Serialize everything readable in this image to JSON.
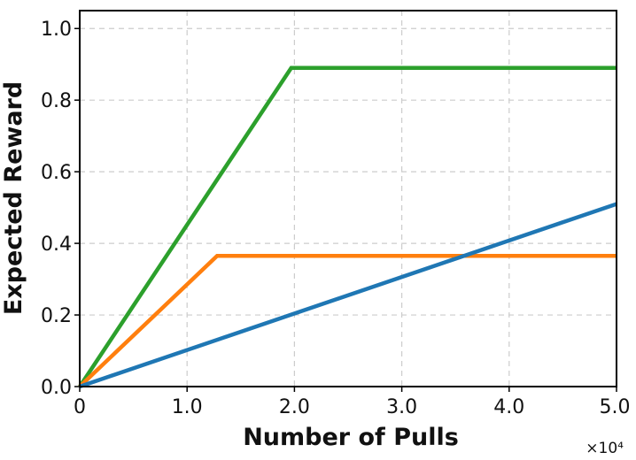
{
  "chart_data": {
    "type": "line",
    "title": "",
    "xlabel": "Number of Pulls",
    "ylabel": "Expected Reward",
    "x_offset_label": "×10⁴",
    "xlim": [
      0,
      5.0
    ],
    "ylim": [
      0,
      1.05
    ],
    "xticks": [
      0,
      1.0,
      2.0,
      3.0,
      4.0,
      5.0
    ],
    "xtick_labels": [
      "0",
      "1.0",
      "2.0",
      "3.0",
      "4.0",
      "5.0"
    ],
    "yticks": [
      0.0,
      0.2,
      0.4,
      0.6,
      0.8,
      1.0
    ],
    "ytick_labels": [
      "0.0",
      "0.2",
      "0.4",
      "0.6",
      "0.8",
      "1.0"
    ],
    "grid": true,
    "series": [
      {
        "color": "#2ca02c",
        "points": [
          [
            0,
            0
          ],
          [
            1.97,
            0.89
          ],
          [
            5.0,
            0.89
          ]
        ]
      },
      {
        "color": "#ff7f0e",
        "points": [
          [
            0,
            0
          ],
          [
            1.28,
            0.365
          ],
          [
            5.0,
            0.365
          ]
        ]
      },
      {
        "color": "#1f77b4",
        "points": [
          [
            0,
            0
          ],
          [
            5.0,
            0.51
          ]
        ]
      }
    ]
  }
}
